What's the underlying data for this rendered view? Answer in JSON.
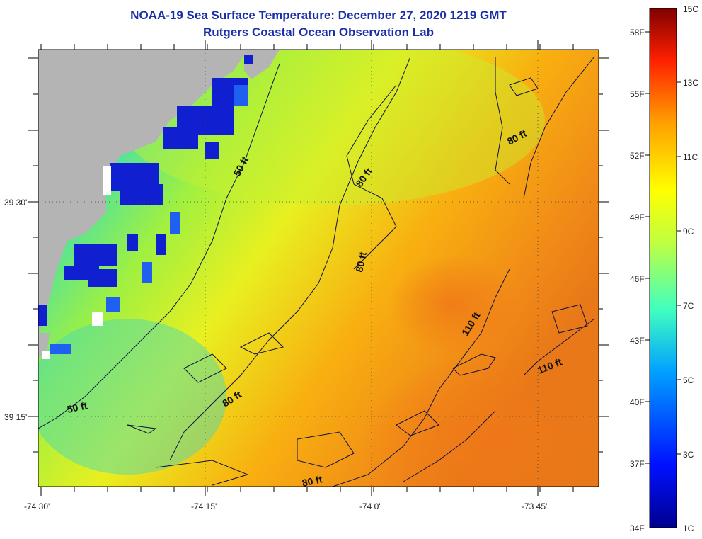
{
  "title": {
    "line1": "NOAA-19 Sea Surface Temperature:  December 27, 2020 1219 GMT",
    "line2": "Rutgers Coastal Ocean Observation Lab"
  },
  "axes": {
    "lat_labels": [
      "39 30'",
      "39 15'"
    ],
    "lon_labels": [
      "-74 30'",
      "-74 15'",
      "-74 0'",
      "-73 45'"
    ]
  },
  "contours": {
    "labels": [
      "50 ft",
      "50 ft",
      "80 ft",
      "80 ft",
      "80 ft",
      "80 ft",
      "80 ft",
      "110 ft",
      "110 ft"
    ]
  },
  "colorbar": {
    "fahrenheit": [
      "58F",
      "55F",
      "52F",
      "49F",
      "46F",
      "43F",
      "40F",
      "37F",
      "34F"
    ],
    "celsius": [
      "15C",
      "13C",
      "11C",
      "9C",
      "7C",
      "5C",
      "3C",
      "1C"
    ],
    "min_c": 1,
    "max_c": 15
  },
  "colors": {
    "title": "#1a2fa8",
    "land": "#b4b4b4",
    "cold": "#1010c8",
    "mid": "#e8f020",
    "warm": "#f07818"
  }
}
